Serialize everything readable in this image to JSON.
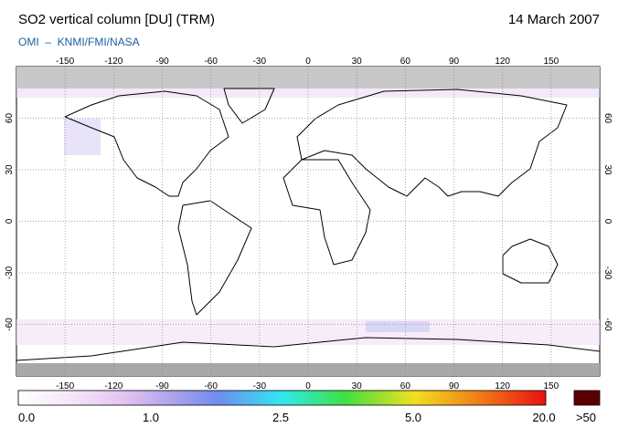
{
  "header": {
    "title": "SO2 vertical column [DU] (TRM)",
    "date": "14 March 2007",
    "credit": "OMI  –  KNMI/FMI/NASA"
  },
  "map": {
    "lon_labels": [
      "-150",
      "-120",
      "-90",
      "-60",
      "-30",
      "0",
      "30",
      "60",
      "90",
      "120",
      "150"
    ],
    "lat_labels": [
      "60",
      "30",
      "0",
      "-30",
      "-60"
    ]
  },
  "colorbar": {
    "labels": [
      "0.0",
      "1.0",
      "2.5",
      "5.0",
      "20.0"
    ],
    "overflow_label": ">50"
  }
}
